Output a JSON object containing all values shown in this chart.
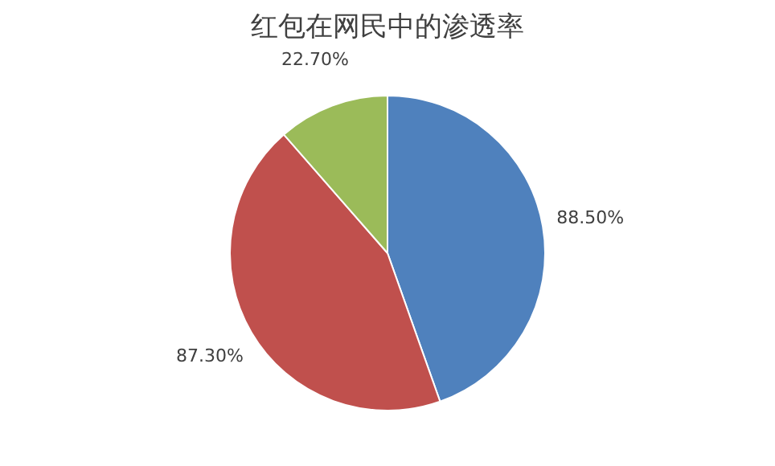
{
  "chart_data": {
    "type": "pie",
    "title": "红包在网民中的渗透率",
    "categories": [
      null,
      null,
      null
    ],
    "values": [
      88.5,
      87.3,
      22.7
    ],
    "value_labels": [
      "88.50%",
      "87.30%",
      "22.70%"
    ],
    "colors": [
      "#4f81bd",
      "#c0504d",
      "#9bbb59"
    ],
    "legend": false
  }
}
